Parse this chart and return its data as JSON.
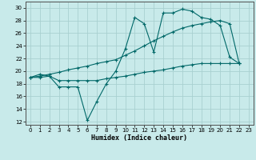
{
  "xlabel": "Humidex (Indice chaleur)",
  "bg_color": "#c8eaea",
  "grid_color": "#a8d0d0",
  "line_color": "#006868",
  "xlim": [
    -0.5,
    23.5
  ],
  "ylim": [
    11.5,
    31
  ],
  "yticks": [
    12,
    14,
    16,
    18,
    20,
    22,
    24,
    26,
    28,
    30
  ],
  "xticks": [
    0,
    1,
    2,
    3,
    4,
    5,
    6,
    7,
    8,
    9,
    10,
    11,
    12,
    13,
    14,
    15,
    16,
    17,
    18,
    19,
    20,
    21,
    22,
    23
  ],
  "line1_x": [
    0,
    1,
    2,
    3,
    4,
    5,
    6,
    7,
    8,
    9,
    10,
    11,
    12,
    13,
    14,
    15,
    16,
    17,
    18,
    19,
    20,
    21,
    22
  ],
  "line1_y": [
    19.0,
    19.5,
    19.2,
    17.5,
    17.5,
    17.5,
    12.2,
    15.2,
    18.0,
    20.0,
    23.5,
    28.5,
    27.5,
    23.0,
    29.2,
    29.2,
    29.8,
    29.5,
    28.5,
    28.2,
    27.2,
    22.2,
    21.2
  ],
  "line2_x": [
    0,
    1,
    2,
    3,
    4,
    5,
    6,
    7,
    8,
    9,
    10,
    11,
    12,
    13,
    14,
    15,
    16,
    17,
    18,
    19,
    20,
    21,
    22
  ],
  "line2_y": [
    19.0,
    19.2,
    19.5,
    19.8,
    20.2,
    20.5,
    20.8,
    21.2,
    21.5,
    21.8,
    22.5,
    23.2,
    24.0,
    24.8,
    25.5,
    26.2,
    26.8,
    27.2,
    27.5,
    27.8,
    28.0,
    27.5,
    21.2
  ],
  "line3_x": [
    0,
    1,
    2,
    3,
    4,
    5,
    6,
    7,
    8,
    9,
    10,
    11,
    12,
    13,
    14,
    15,
    16,
    17,
    18,
    19,
    20,
    21,
    22
  ],
  "line3_y": [
    19.0,
    19.0,
    19.2,
    18.5,
    18.5,
    18.5,
    18.5,
    18.5,
    18.8,
    19.0,
    19.2,
    19.5,
    19.8,
    20.0,
    20.2,
    20.5,
    20.8,
    21.0,
    21.2,
    21.2,
    21.2,
    21.2,
    21.2
  ]
}
